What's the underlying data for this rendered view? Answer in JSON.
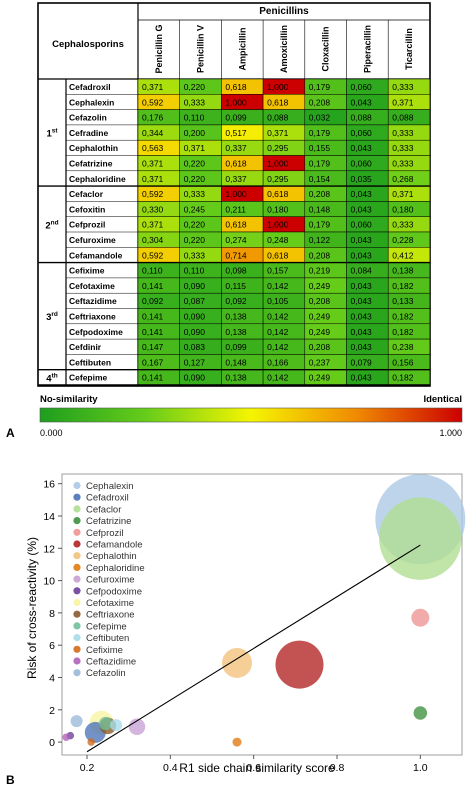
{
  "panel_a": {
    "label": "A",
    "row_group_title": "Cephalosporins",
    "col_group_title": "Penicillins",
    "columns": [
      "Penicillin G",
      "Penicillin V",
      "Ampicillin",
      "Amoxicillin",
      "Cloxacillin",
      "Piperacillin",
      "Ticarcillin"
    ],
    "generations": [
      {
        "label": "1st",
        "rows": [
          {
            "name": "Cefadroxil",
            "values": [
              "0,371",
              "0,220",
              "0,618",
              "1,000",
              "0,179",
              "0,060",
              "0,333"
            ]
          },
          {
            "name": "Cephalexin",
            "values": [
              "0,592",
              "0,333",
              "1,000",
              "0,618",
              "0,208",
              "0,043",
              "0,371"
            ]
          },
          {
            "name": "Cefazolin",
            "values": [
              "0,176",
              "0,110",
              "0,099",
              "0,088",
              "0,032",
              "0,088",
              "0,088"
            ]
          },
          {
            "name": "Cefradine",
            "values": [
              "0,344",
              "0,200",
              "0,517",
              "0,371",
              "0,179",
              "0,060",
              "0,333"
            ]
          },
          {
            "name": "Cephalothin",
            "values": [
              "0,563",
              "0,371",
              "0,337",
              "0,295",
              "0,155",
              "0,043",
              "0,333"
            ]
          },
          {
            "name": "Cefatrizine",
            "values": [
              "0,371",
              "0,220",
              "0,618",
              "1,000",
              "0,179",
              "0,060",
              "0,333"
            ]
          },
          {
            "name": "Cephaloridine",
            "values": [
              "0,371",
              "0,220",
              "0,337",
              "0,295",
              "0,154",
              "0,035",
              "0,268"
            ]
          }
        ]
      },
      {
        "label": "2nd",
        "rows": [
          {
            "name": "Cefaclor",
            "values": [
              "0,592",
              "0,333",
              "1,000",
              "0,618",
              "0,208",
              "0,043",
              "0,371"
            ]
          },
          {
            "name": "Cefoxitin",
            "values": [
              "0,330",
              "0,245",
              "0,211",
              "0,180",
              "0,148",
              "0,043",
              "0,180"
            ]
          },
          {
            "name": "Cefprozil",
            "values": [
              "0,371",
              "0,220",
              "0,618",
              "1,000",
              "0,179",
              "0,060",
              "0,333"
            ]
          },
          {
            "name": "Cefuroxime",
            "values": [
              "0,304",
              "0,220",
              "0,274",
              "0,248",
              "0,122",
              "0,043",
              "0,228"
            ]
          },
          {
            "name": "Cefamandole",
            "values": [
              "0,592",
              "0,333",
              "0,714",
              "0,618",
              "0,208",
              "0,043",
              "0,412"
            ]
          }
        ]
      },
      {
        "label": "3rd",
        "rows": [
          {
            "name": "Cefixime",
            "values": [
              "0,110",
              "0,110",
              "0,098",
              "0,157",
              "0,219",
              "0,084",
              "0,138"
            ]
          },
          {
            "name": "Cefotaxime",
            "values": [
              "0,141",
              "0,090",
              "0,115",
              "0,142",
              "0,249",
              "0,043",
              "0,182"
            ]
          },
          {
            "name": "Ceftazidime",
            "values": [
              "0,092",
              "0,087",
              "0,092",
              "0,105",
              "0,208",
              "0,043",
              "0,133"
            ]
          },
          {
            "name": "Ceftriaxone",
            "values": [
              "0,141",
              "0,090",
              "0,138",
              "0,142",
              "0,249",
              "0,043",
              "0,182"
            ]
          },
          {
            "name": "Cefpodoxime",
            "values": [
              "0,141",
              "0,090",
              "0,138",
              "0,142",
              "0,249",
              "0,043",
              "0,182"
            ]
          },
          {
            "name": "Cefdinir",
            "values": [
              "0,147",
              "0,083",
              "0,099",
              "0,142",
              "0,208",
              "0,043",
              "0,238"
            ]
          },
          {
            "name": "Ceftibuten",
            "values": [
              "0,167",
              "0,127",
              "0,148",
              "0,166",
              "0,237",
              "0,079",
              "0,156"
            ]
          }
        ]
      },
      {
        "label": "4th",
        "rows": [
          {
            "name": "Cefepime",
            "values": [
              "0,141",
              "0,090",
              "0,138",
              "0,142",
              "0,249",
              "0,043",
              "0,182"
            ]
          }
        ]
      }
    ],
    "scale": {
      "left_title": "No-similarity",
      "right_title": "Identical",
      "min_label": "0.000",
      "max_label": "1.000",
      "colors": [
        "#1e9e1e",
        "#66cc1a",
        "#f5f500",
        "#f08a00",
        "#cc0000"
      ]
    }
  },
  "chart_data": {
    "type": "scatter",
    "panel_label": "B",
    "xlabel": "R1 side chain similarity score",
    "ylabel": "Risk of cross-reactivity (%)",
    "xlim": [
      0.14,
      1.1
    ],
    "ylim": [
      -0.8,
      16.6
    ],
    "xticks": [
      "0.2",
      "0.4",
      "0.6",
      "0.8",
      "1.0"
    ],
    "yticks": [
      "0",
      "2",
      "4",
      "6",
      "8",
      "10",
      "12",
      "14",
      "16"
    ],
    "legend_position": "upper-left",
    "series": [
      {
        "name": "Cephalexin",
        "color": "#aac8e4",
        "points": [
          {
            "x": 1.0,
            "y": 13.8,
            "size": 3.0
          }
        ]
      },
      {
        "name": "Cefadroxil",
        "color": "#4a73b8",
        "points": [
          {
            "x": 0.22,
            "y": 0.6,
            "size": 0.7
          }
        ]
      },
      {
        "name": "Cefaclor",
        "color": "#b0de90",
        "points": [
          {
            "x": 1.0,
            "y": 12.6,
            "size": 2.75
          }
        ]
      },
      {
        "name": "Cefatrizine",
        "color": "#3e8f3e",
        "points": [
          {
            "x": 1.0,
            "y": 1.8,
            "size": 0.45
          }
        ]
      },
      {
        "name": "Cefprozil",
        "color": "#ee9494",
        "points": [
          {
            "x": 1.0,
            "y": 7.7,
            "size": 0.6
          }
        ]
      },
      {
        "name": "Cefamandole",
        "color": "#b22222",
        "points": [
          {
            "x": 0.71,
            "y": 4.8,
            "size": 1.6
          }
        ]
      },
      {
        "name": "Cephalothin",
        "color": "#f2c27a",
        "points": [
          {
            "x": 0.56,
            "y": 4.9,
            "size": 1.0
          }
        ]
      },
      {
        "name": "Cephaloridine",
        "color": "#e07a10",
        "points": [
          {
            "x": 0.56,
            "y": 0.0,
            "size": 0.3
          }
        ]
      },
      {
        "name": "Cefuroxime",
        "color": "#c8a0d4",
        "points": [
          {
            "x": 0.32,
            "y": 0.95,
            "size": 0.55
          }
        ]
      },
      {
        "name": "Cefpodoxime",
        "color": "#6a3d9a",
        "points": [
          {
            "x": 0.16,
            "y": 0.4,
            "size": 0.25
          }
        ]
      },
      {
        "name": "Cefotaxime",
        "color": "#f8f4a0",
        "points": [
          {
            "x": 0.235,
            "y": 1.2,
            "size": 0.8
          }
        ]
      },
      {
        "name": "Ceftriaxone",
        "color": "#8b5a2b",
        "points": [
          {
            "x": 0.25,
            "y": 1.0,
            "size": 0.55
          }
        ]
      },
      {
        "name": "Cefepime",
        "color": "#6fbf9a",
        "points": [
          {
            "x": 0.245,
            "y": 1.15,
            "size": 0.45
          }
        ]
      },
      {
        "name": "Ceftibuten",
        "color": "#a6dce8",
        "points": [
          {
            "x": 0.27,
            "y": 1.05,
            "size": 0.4
          }
        ]
      },
      {
        "name": "Cefixime",
        "color": "#d46a1a",
        "points": [
          {
            "x": 0.21,
            "y": 0.0,
            "size": 0.25
          }
        ]
      },
      {
        "name": "Ceftazidime",
        "color": "#b060b8",
        "points": [
          {
            "x": 0.15,
            "y": 0.3,
            "size": 0.25
          }
        ]
      },
      {
        "name": "Cefazolin",
        "color": "#9ab8d8",
        "points": [
          {
            "x": 0.175,
            "y": 1.3,
            "size": 0.4
          }
        ]
      }
    ],
    "fit_line": {
      "color": "#000000",
      "x": [
        0.2,
        1.0
      ],
      "y": [
        -0.6,
        12.2
      ]
    }
  }
}
